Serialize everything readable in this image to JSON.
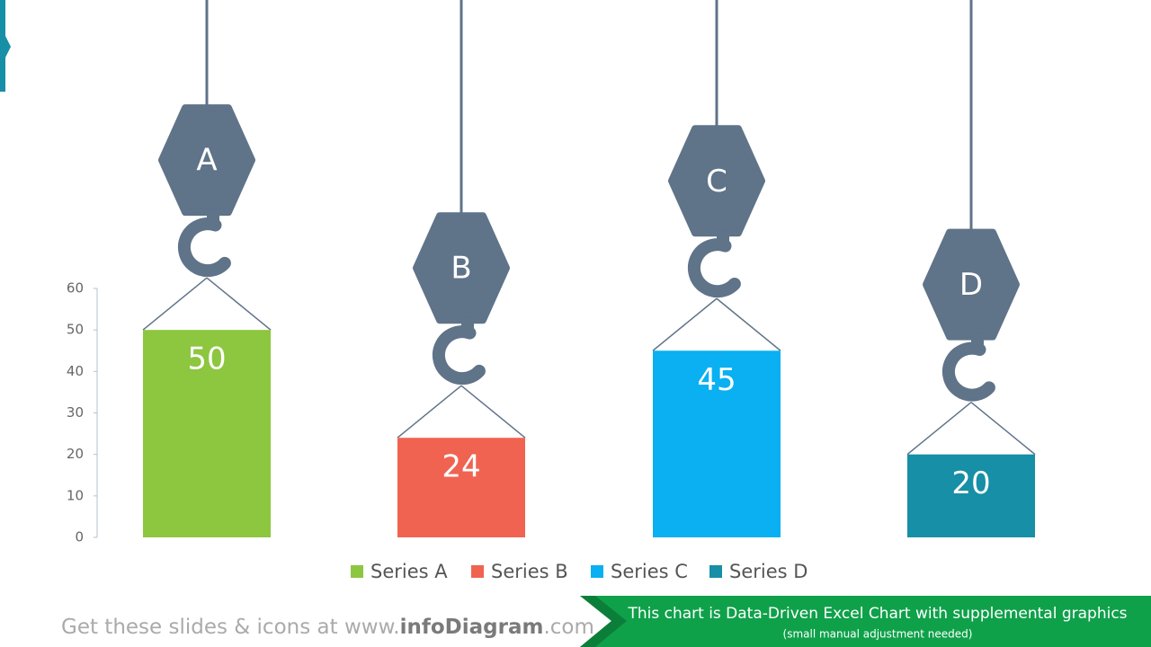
{
  "chart_data": {
    "type": "bar",
    "categories": [
      "A",
      "B",
      "C",
      "D"
    ],
    "series": [
      {
        "name": "Series A",
        "color": "#8dc63f",
        "values": [
          50,
          null,
          null,
          null
        ]
      },
      {
        "name": "Series B",
        "color": "#f06351",
        "values": [
          null,
          24,
          null,
          null
        ]
      },
      {
        "name": "Series C",
        "color": "#0ab0f2",
        "values": [
          null,
          null,
          45,
          null
        ]
      },
      {
        "name": "Series D",
        "color": "#178fa6",
        "values": [
          null,
          null,
          null,
          20
        ]
      }
    ],
    "ylim": [
      0,
      60
    ],
    "yticks": [
      0,
      10,
      20,
      30,
      40,
      50,
      60
    ]
  },
  "footer": {
    "prefix": "Get these slides & icons at www.",
    "brand": "infoDiagram",
    "suffix": ".com"
  },
  "banner": {
    "line1": "This chart is Data-Driven Excel Chart with supplemental graphics",
    "line2": "(small manual adjustment needed)"
  }
}
